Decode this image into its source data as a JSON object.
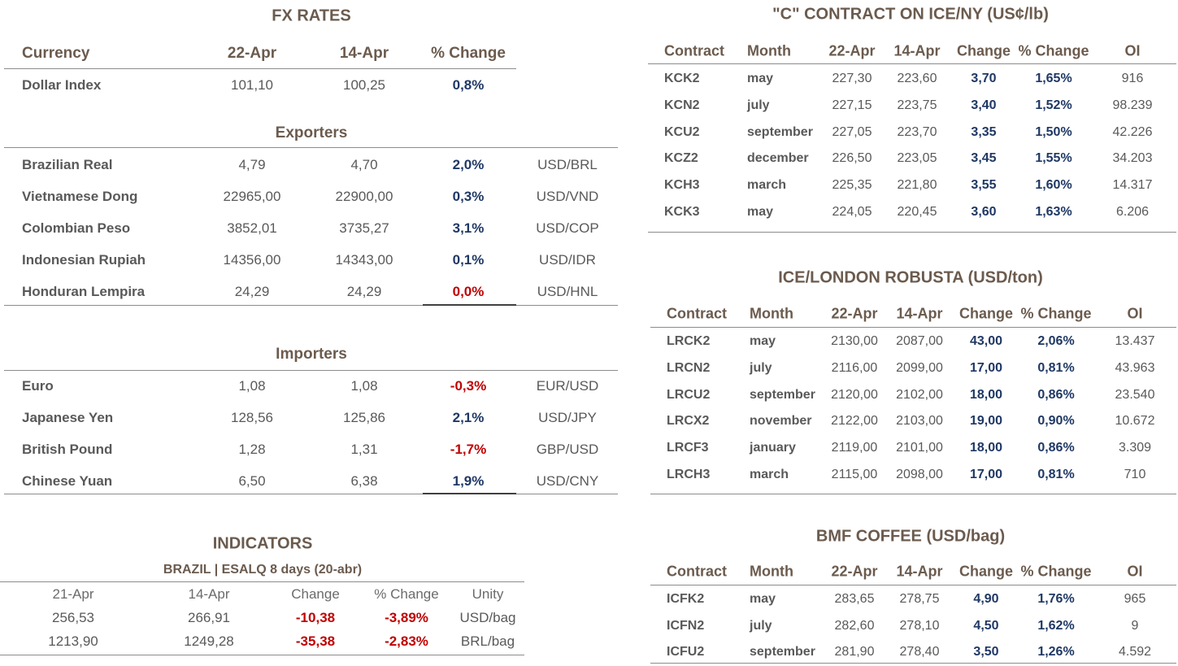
{
  "fx": {
    "title": "FX RATES",
    "header": [
      "Currency",
      "22-Apr",
      "14-Apr",
      "% Change"
    ],
    "dollar_index": [
      "Dollar Index",
      "101,10",
      "100,25",
      "0,8%"
    ],
    "exporters": {
      "title": "Exporters",
      "rows": [
        [
          "Brazilian Real",
          "4,79",
          "4,70",
          "2,0%",
          "USD/BRL"
        ],
        [
          "Vietnamese Dong",
          "22965,00",
          "22900,00",
          "0,3%",
          "USD/VND"
        ],
        [
          "Colombian Peso",
          "3852,01",
          "3735,27",
          "3,1%",
          "USD/COP"
        ],
        [
          "Indonesian Rupiah",
          "14356,00",
          "14343,00",
          "0,1%",
          "USD/IDR"
        ],
        [
          "Honduran Lempira",
          "24,29",
          "24,29",
          "0,0%",
          "USD/HNL"
        ]
      ]
    },
    "importers": {
      "title": "Importers",
      "rows": [
        [
          "Euro",
          "1,08",
          "1,08",
          "-0,3%",
          "EUR/USD"
        ],
        [
          "Japanese Yen",
          "128,56",
          "125,86",
          "2,1%",
          "USD/JPY"
        ],
        [
          "British Pound",
          "1,28",
          "1,31",
          "-1,7%",
          "GBP/USD"
        ],
        [
          "Chinese Yuan",
          "6,50",
          "6,38",
          "1,9%",
          "USD/CNY"
        ]
      ]
    }
  },
  "indicators": {
    "title": "INDICATORS",
    "subtitle": "BRAZIL | ESALQ 8 days (20-abr)",
    "header": [
      "21-Apr",
      "14-Apr",
      "Change",
      "% Change",
      "Unity"
    ],
    "rows": [
      [
        "256,53",
        "266,91",
        "-10,38",
        "-3,89%",
        "USD/bag"
      ],
      [
        "1213,90",
        "1249,28",
        "-35,38",
        "-2,83%",
        "BRL/bag"
      ]
    ]
  },
  "c_contract": {
    "title": "\"C\" CONTRACT ON ICE/NY (US¢/lb)",
    "header": [
      "Contract",
      "Month",
      "22-Apr",
      "14-Apr",
      "Change",
      "% Change",
      "OI"
    ],
    "rows": [
      [
        "KCK2",
        "may",
        "227,30",
        "223,60",
        "3,70",
        "1,65%",
        "916"
      ],
      [
        "KCN2",
        "july",
        "227,15",
        "223,75",
        "3,40",
        "1,52%",
        "98.239"
      ],
      [
        "KCU2",
        "september",
        "227,05",
        "223,70",
        "3,35",
        "1,50%",
        "42.226"
      ],
      [
        "KCZ2",
        "december",
        "226,50",
        "223,05",
        "3,45",
        "1,55%",
        "34.203"
      ],
      [
        "KCH3",
        "march",
        "225,35",
        "221,80",
        "3,55",
        "1,60%",
        "14.317"
      ],
      [
        "KCK3",
        "may",
        "224,05",
        "220,45",
        "3,60",
        "1,63%",
        "6.206"
      ]
    ]
  },
  "robusta": {
    "title": "ICE/LONDON ROBUSTA (USD/ton)",
    "header": [
      "Contract",
      "Month",
      "22-Apr",
      "14-Apr",
      "Change",
      "% Change",
      "OI"
    ],
    "rows": [
      [
        "LRCK2",
        "may",
        "2130,00",
        "2087,00",
        "43,00",
        "2,06%",
        "13.437"
      ],
      [
        "LRCN2",
        "july",
        "2116,00",
        "2099,00",
        "17,00",
        "0,81%",
        "43.963"
      ],
      [
        "LRCU2",
        "september",
        "2120,00",
        "2102,00",
        "18,00",
        "0,86%",
        "23.540"
      ],
      [
        "LRCX2",
        "november",
        "2122,00",
        "2103,00",
        "19,00",
        "0,90%",
        "10.672"
      ],
      [
        "LRCF3",
        "january",
        "2119,00",
        "2101,00",
        "18,00",
        "0,86%",
        "3.309"
      ],
      [
        "LRCH3",
        "march",
        "2115,00",
        "2098,00",
        "17,00",
        "0,81%",
        "710"
      ]
    ]
  },
  "bmf": {
    "title": "BMF COFFEE (USD/bag)",
    "header": [
      "Contract",
      "Month",
      "22-Apr",
      "14-Apr",
      "Change",
      "% Change",
      "OI"
    ],
    "rows": [
      [
        "ICFK2",
        "may",
        "283,65",
        "278,75",
        "4,90",
        "1,76%",
        "965"
      ],
      [
        "ICFN2",
        "july",
        "282,60",
        "278,10",
        "4,50",
        "1,62%",
        "9"
      ],
      [
        "ICFU2",
        "september",
        "281,90",
        "278,40",
        "3,50",
        "1,26%",
        "4.592"
      ]
    ]
  }
}
